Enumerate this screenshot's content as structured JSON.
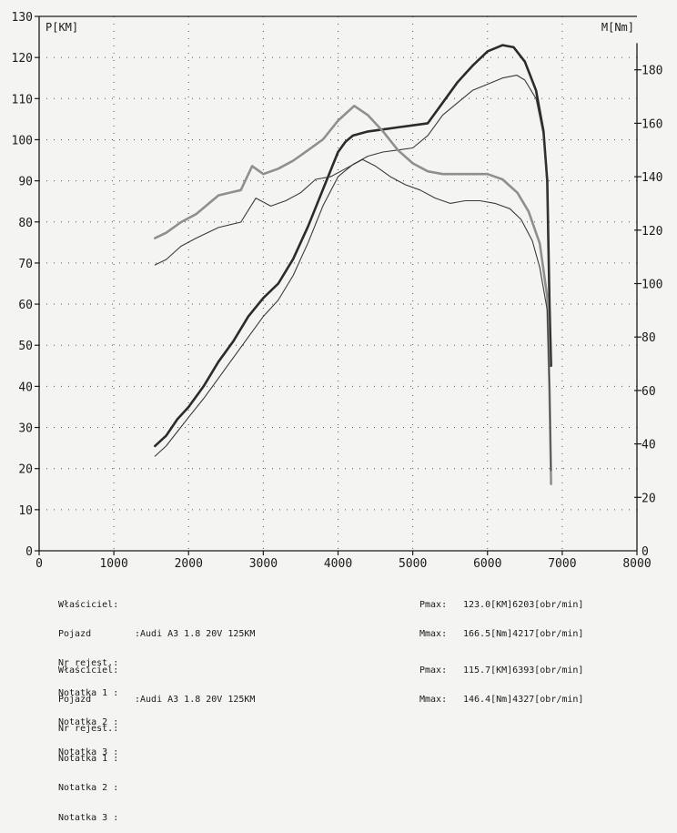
{
  "chart_data": {
    "type": "line",
    "left_axis_label": "P[KM]",
    "right_axis_label": "M[Nm]",
    "x_ticks": [
      0,
      1000,
      2000,
      3000,
      4000,
      5000,
      6000,
      7000,
      8000
    ],
    "left_ticks": [
      0,
      10,
      20,
      30,
      40,
      50,
      60,
      70,
      80,
      90,
      100,
      110,
      120,
      130
    ],
    "right_ticks": [
      20,
      40,
      60,
      80,
      100,
      120,
      140,
      160,
      180
    ],
    "x_range": [
      0,
      8000
    ],
    "left_range": [
      0,
      130
    ],
    "right_range": [
      0,
      200
    ],
    "grid": true,
    "series": [
      {
        "axis": "left",
        "color": "#2b2b2b",
        "width": 2.6,
        "x": [
          1550,
          1700,
          1850,
          2000,
          2200,
          2400,
          2600,
          2800,
          3000,
          3200,
          3400,
          3600,
          3800,
          4000,
          4100,
          4200,
          4400,
          4600,
          4800,
          5000,
          5200,
          5400,
          5600,
          5800,
          6000,
          6203,
          6350,
          6500,
          6650,
          6750,
          6800,
          6830,
          6850
        ],
        "y": [
          25.5,
          28,
          32,
          35,
          40,
          46,
          51,
          57,
          61.5,
          65,
          71,
          79,
          88,
          97,
          99.5,
          101,
          102,
          102.5,
          103,
          103.5,
          104,
          109,
          114,
          118,
          121.5,
          123,
          122.5,
          119,
          112,
          102,
          90,
          60,
          45
        ]
      },
      {
        "axis": "left",
        "color": "#3a3a3a",
        "width": 1.1,
        "x": [
          1550,
          1700,
          1850,
          2000,
          2200,
          2400,
          2600,
          2800,
          3000,
          3200,
          3400,
          3600,
          3800,
          4000,
          4200,
          4400,
          4600,
          4800,
          5000,
          5200,
          5400,
          5600,
          5800,
          6000,
          6200,
          6393,
          6500,
          6650,
          6750,
          6800,
          6830,
          6850
        ],
        "y": [
          23,
          25.5,
          29,
          32.5,
          37,
          42,
          47,
          52,
          57,
          61,
          67,
          75,
          84,
          91,
          94,
          96,
          97,
          97.5,
          98,
          101,
          106,
          109,
          112,
          113.5,
          115,
          115.7,
          114.5,
          110,
          101,
          88,
          65,
          45
        ]
      },
      {
        "axis": "right",
        "color": "#8f8f8f",
        "width": 2.6,
        "x": [
          1550,
          1700,
          1900,
          2100,
          2400,
          2700,
          2850,
          3000,
          3200,
          3400,
          3600,
          3800,
          4000,
          4217,
          4400,
          4600,
          4800,
          5000,
          5200,
          5400,
          5600,
          5800,
          6000,
          6200,
          6400,
          6550,
          6700,
          6800,
          6830,
          6850
        ],
        "y": [
          117,
          119,
          123,
          126,
          133,
          135,
          144,
          141,
          143,
          146,
          150,
          154,
          161,
          166.5,
          163,
          157,
          150,
          145,
          142,
          141,
          141,
          141,
          141,
          139,
          134,
          127,
          115,
          95,
          60,
          25
        ]
      },
      {
        "axis": "right",
        "color": "#3a3a3a",
        "width": 1.1,
        "x": [
          1550,
          1700,
          1900,
          2100,
          2400,
          2700,
          2900,
          3100,
          3300,
          3500,
          3700,
          3900,
          4100,
          4327,
          4500,
          4700,
          4900,
          5100,
          5300,
          5500,
          5700,
          5900,
          6100,
          6300,
          6450,
          6600,
          6700,
          6800,
          6830,
          6850
        ],
        "y": [
          107,
          109,
          114,
          117,
          121,
          123,
          132,
          129,
          131,
          134,
          139,
          140,
          143,
          146.4,
          144,
          140,
          137,
          135,
          132,
          130,
          131,
          131,
          130,
          128,
          124,
          116,
          106,
          90,
          60,
          30
        ]
      }
    ]
  },
  "info_labels": {
    "owner": "Właściciel:",
    "vehicle": "Pojazd",
    "reg": "Nr rejest.:",
    "note1": "Notatka 1 :",
    "note2": "Notatka 2 :",
    "note3": "Notatka 3 :"
  },
  "measurement_1": {
    "vehicle_value": ":Audi A3 1.8 20V 125KM",
    "pmax_label": "Pmax:",
    "pmax_value": "123.0[KM]6203[obr/min]",
    "mmax_label": "Mmax:",
    "mmax_value": "166.5[Nm]4217[obr/min]"
  },
  "measurement_2": {
    "vehicle_value": ":Audi A3 1.8 20V 125KM",
    "pmax_label": "Pmax:",
    "pmax_value": "115.7[KM]6393[obr/min]",
    "mmax_label": "Mmax:",
    "mmax_value": "146.4[Nm]4327[obr/min]"
  }
}
